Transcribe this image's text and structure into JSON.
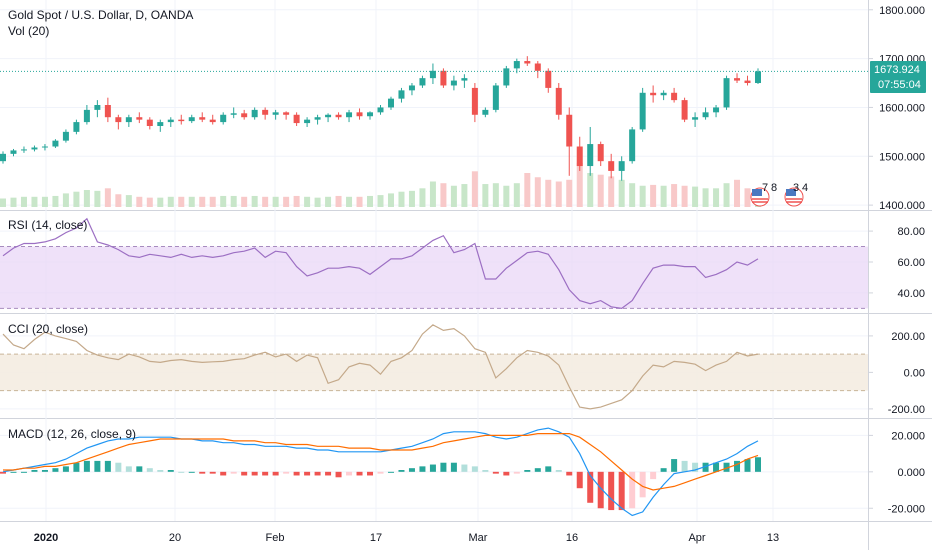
{
  "legend": {
    "title": "Gold Spot / U.S. Dollar, D, OANDA",
    "vol": "Vol (20)",
    "rsi": "RSI (14, close)",
    "cci": "CCI (20, close)",
    "macd": "MACD (12, 26, close, 9)"
  },
  "price_badge": {
    "price": "1673.924",
    "countdown": "07:55:04"
  },
  "event_markers": [
    "7",
    "8",
    "3",
    "4"
  ],
  "colors": {
    "up": "#26a69a",
    "down": "#ef5350",
    "vol_up": "#c8e6c9",
    "vol_down": "#f8c9c9",
    "rsi": "#9c6fc3",
    "cci": "#c4a98a",
    "macd_line": "#2196f3",
    "signal_line": "#ff6d00",
    "last_line": "#26a69a"
  },
  "chart_data": [
    {
      "type": "candlestick",
      "name": "Gold Spot / U.S. Dollar, D, OANDA",
      "x_labels": [
        "2020",
        "20",
        "Feb",
        "17",
        "Mar",
        "16",
        "Apr",
        "13"
      ],
      "y_ticks": [
        1400,
        1500,
        1600,
        1700,
        1800
      ],
      "ylim": [
        1390,
        1820
      ],
      "last_price": 1673.924,
      "candles": [
        [
          1490,
          1510,
          1485,
          1505
        ],
        [
          1505,
          1515,
          1500,
          1512
        ],
        [
          1512,
          1520,
          1507,
          1514
        ],
        [
          1514,
          1522,
          1510,
          1518
        ],
        [
          1518,
          1525,
          1512,
          1520
        ],
        [
          1520,
          1535,
          1517,
          1532
        ],
        [
          1532,
          1555,
          1528,
          1550
        ],
        [
          1550,
          1575,
          1545,
          1570
        ],
        [
          1570,
          1605,
          1565,
          1595
        ],
        [
          1595,
          1615,
          1580,
          1605
        ],
        [
          1605,
          1620,
          1570,
          1580
        ],
        [
          1580,
          1585,
          1555,
          1570
        ],
        [
          1570,
          1585,
          1560,
          1580
        ],
        [
          1580,
          1590,
          1568,
          1575
        ],
        [
          1575,
          1580,
          1555,
          1562
        ],
        [
          1562,
          1575,
          1550,
          1570
        ],
        [
          1570,
          1580,
          1560,
          1575
        ],
        [
          1575,
          1585,
          1565,
          1572
        ],
        [
          1572,
          1585,
          1568,
          1580
        ],
        [
          1580,
          1590,
          1570,
          1575
        ],
        [
          1575,
          1585,
          1565,
          1570
        ],
        [
          1570,
          1590,
          1565,
          1585
        ],
        [
          1585,
          1600,
          1578,
          1588
        ],
        [
          1588,
          1595,
          1575,
          1580
        ],
        [
          1580,
          1600,
          1575,
          1595
        ],
        [
          1595,
          1600,
          1575,
          1585
        ],
        [
          1585,
          1595,
          1575,
          1590
        ],
        [
          1590,
          1592,
          1575,
          1585
        ],
        [
          1585,
          1590,
          1562,
          1568
        ],
        [
          1568,
          1580,
          1560,
          1575
        ],
        [
          1575,
          1585,
          1565,
          1580
        ],
        [
          1580,
          1588,
          1570,
          1585
        ],
        [
          1585,
          1590,
          1575,
          1580
        ],
        [
          1580,
          1595,
          1570,
          1590
        ],
        [
          1590,
          1598,
          1575,
          1582
        ],
        [
          1582,
          1592,
          1575,
          1590
        ],
        [
          1590,
          1605,
          1585,
          1600
        ],
        [
          1600,
          1622,
          1595,
          1618
        ],
        [
          1618,
          1640,
          1610,
          1635
        ],
        [
          1635,
          1650,
          1625,
          1645
        ],
        [
          1645,
          1665,
          1640,
          1660
        ],
        [
          1660,
          1690,
          1648,
          1675
        ],
        [
          1675,
          1680,
          1640,
          1645
        ],
        [
          1645,
          1665,
          1635,
          1655
        ],
        [
          1655,
          1668,
          1640,
          1660
        ],
        [
          1640,
          1650,
          1570,
          1585
        ],
        [
          1585,
          1600,
          1580,
          1595
        ],
        [
          1595,
          1650,
          1590,
          1645
        ],
        [
          1645,
          1685,
          1640,
          1680
        ],
        [
          1680,
          1700,
          1670,
          1695
        ],
        [
          1695,
          1705,
          1685,
          1690
        ],
        [
          1690,
          1695,
          1660,
          1675
        ],
        [
          1675,
          1680,
          1630,
          1640
        ],
        [
          1640,
          1650,
          1575,
          1585
        ],
        [
          1585,
          1600,
          1460,
          1520
        ],
        [
          1520,
          1540,
          1470,
          1480
        ],
        [
          1480,
          1560,
          1460,
          1525
        ],
        [
          1525,
          1530,
          1480,
          1490
        ],
        [
          1490,
          1505,
          1455,
          1470
        ],
        [
          1470,
          1500,
          1450,
          1490
        ],
        [
          1490,
          1560,
          1485,
          1555
        ],
        [
          1555,
          1640,
          1550,
          1630
        ],
        [
          1630,
          1645,
          1610,
          1625
        ],
        [
          1625,
          1635,
          1615,
          1630
        ],
        [
          1630,
          1640,
          1610,
          1615
        ],
        [
          1615,
          1620,
          1570,
          1575
        ],
        [
          1575,
          1590,
          1560,
          1580
        ],
        [
          1580,
          1600,
          1575,
          1590
        ],
        [
          1590,
          1605,
          1580,
          1600
        ],
        [
          1600,
          1665,
          1595,
          1660
        ],
        [
          1660,
          1670,
          1650,
          1655
        ],
        [
          1655,
          1665,
          1645,
          1650
        ],
        [
          1650,
          1680,
          1648,
          1674
        ]
      ],
      "volume": [
        10,
        11,
        12,
        12,
        12,
        13,
        16,
        18,
        20,
        19,
        22,
        15,
        14,
        12,
        11,
        11,
        12,
        12,
        12,
        12,
        12,
        13,
        13,
        12,
        13,
        12,
        12,
        12,
        13,
        12,
        11,
        12,
        13,
        12,
        12,
        13,
        14,
        16,
        18,
        19,
        22,
        30,
        28,
        25,
        27,
        42,
        27,
        28,
        25,
        28,
        40,
        35,
        32,
        30,
        32,
        52,
        40,
        38,
        36,
        32,
        28,
        25,
        26,
        25,
        27,
        25,
        24,
        22,
        22,
        28,
        32,
        22,
        20
      ]
    },
    {
      "type": "line",
      "name": "RSI (14, close)",
      "y_ticks": [
        40,
        60,
        80
      ],
      "ylim": [
        27,
        93
      ],
      "bands": [
        30,
        70
      ],
      "values": [
        64,
        69,
        72,
        72,
        73,
        75,
        79,
        82,
        88,
        73,
        71,
        68,
        64,
        63,
        65,
        64,
        63,
        65,
        63,
        64,
        63,
        64,
        66,
        67,
        69,
        63,
        67,
        66,
        57,
        51,
        53,
        56,
        56,
        57,
        56,
        52,
        57,
        62,
        62,
        64,
        69,
        74,
        77,
        66,
        68,
        72,
        49,
        49,
        56,
        61,
        66,
        67,
        65,
        55,
        42,
        35,
        33,
        35,
        31,
        30,
        35,
        46,
        56,
        58,
        58,
        57,
        57,
        50,
        52,
        55,
        60,
        58,
        62
      ]
    },
    {
      "type": "line",
      "name": "CCI (20, close)",
      "y_ticks": [
        -200,
        0,
        200
      ],
      "ylim": [
        -250,
        320
      ],
      "bands": [
        -100,
        100
      ],
      "values": [
        210,
        150,
        130,
        180,
        220,
        200,
        185,
        170,
        120,
        95,
        80,
        70,
        100,
        85,
        60,
        55,
        65,
        70,
        60,
        55,
        58,
        60,
        70,
        75,
        95,
        110,
        85,
        100,
        60,
        95,
        80,
        -60,
        -40,
        30,
        50,
        40,
        -10,
        60,
        80,
        120,
        210,
        260,
        230,
        240,
        200,
        130,
        110,
        -30,
        20,
        80,
        120,
        110,
        90,
        40,
        -80,
        -190,
        -200,
        -190,
        -170,
        -150,
        -100,
        -20,
        40,
        30,
        60,
        55,
        45,
        10,
        40,
        60,
        110,
        90,
        100
      ]
    },
    {
      "type": "macd",
      "name": "MACD (12, 26, close, 9)",
      "y_ticks": [
        -20,
        0,
        20
      ],
      "ylim": [
        -27,
        29
      ],
      "macd": [
        0,
        1,
        2,
        3,
        4,
        5,
        7,
        10,
        13,
        15,
        17,
        18,
        18,
        19,
        19,
        19,
        19,
        18,
        18,
        17,
        17,
        16,
        16,
        15,
        15,
        14,
        14,
        14,
        13,
        13,
        12,
        12,
        11,
        11,
        11,
        11,
        11,
        12,
        13,
        14,
        16,
        18,
        21,
        22,
        22,
        22,
        21,
        19,
        18,
        19,
        21,
        23,
        24,
        22,
        19,
        10,
        -2,
        -9,
        -15,
        -20,
        -24,
        -22,
        -14,
        -7,
        -1,
        0,
        1,
        3,
        5,
        7,
        10,
        14,
        17
      ],
      "signal": [
        1,
        1,
        2,
        2,
        3,
        3,
        4,
        5,
        7,
        9,
        11,
        13,
        15,
        16,
        17,
        18,
        18,
        18,
        18,
        18,
        18,
        18,
        17,
        17,
        17,
        16,
        16,
        15,
        15,
        15,
        14,
        14,
        14,
        13,
        13,
        13,
        12,
        12,
        12,
        12,
        13,
        14,
        16,
        17,
        18,
        19,
        20,
        20,
        20,
        20,
        20,
        21,
        21,
        21,
        21,
        19,
        15,
        11,
        6,
        1,
        -4,
        -8,
        -10,
        -9,
        -8,
        -6,
        -4,
        -2,
        0,
        2,
        4,
        7,
        9
      ],
      "histogram": [
        -1,
        0,
        0,
        1,
        1,
        2,
        3,
        5,
        6,
        6,
        6,
        5,
        3,
        3,
        2,
        1,
        1,
        0,
        0,
        -1,
        -1,
        -2,
        -1,
        -2,
        -2,
        -2,
        -2,
        -1,
        -2,
        -2,
        -2,
        -2,
        -3,
        -2,
        -2,
        -2,
        -1,
        0,
        1,
        2,
        3,
        4,
        5,
        5,
        4,
        3,
        1,
        -1,
        -2,
        -1,
        1,
        2,
        3,
        1,
        -2,
        -9,
        -17,
        -20,
        -21,
        -21,
        -20,
        -14,
        -4,
        2,
        7,
        6,
        5,
        5,
        5,
        5,
        6,
        7,
        8
      ]
    }
  ]
}
